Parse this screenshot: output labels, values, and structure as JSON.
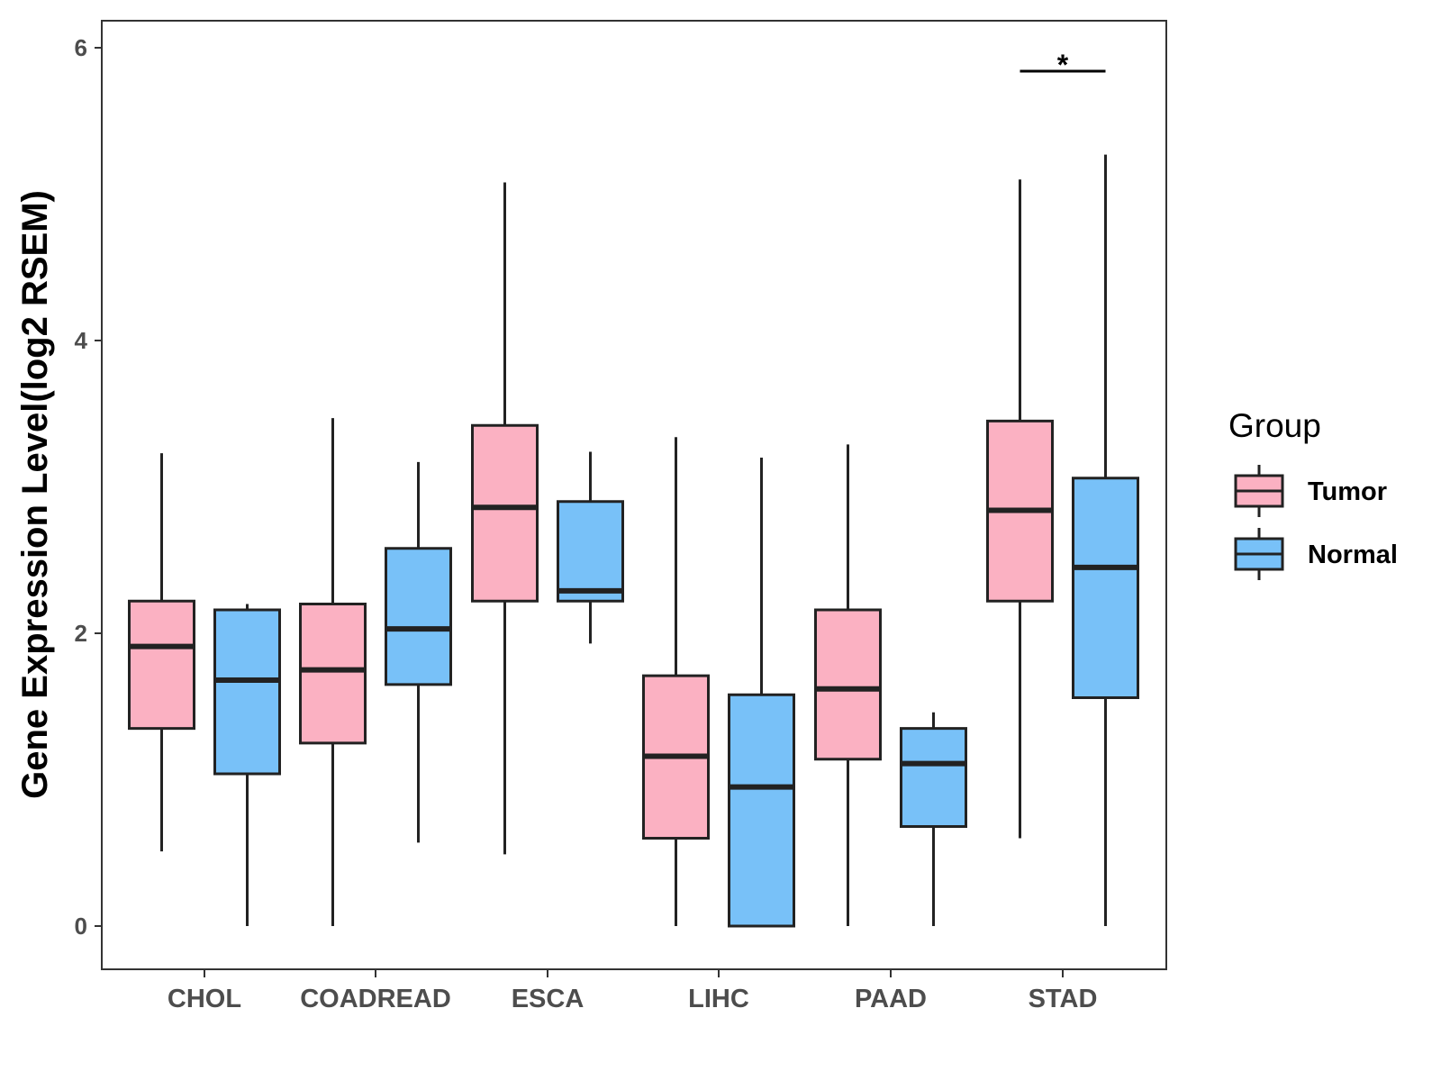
{
  "chart_data": {
    "type": "boxplot",
    "title": "",
    "xlabel": "",
    "ylabel": "Gene Expression Level(log2 RSEM)",
    "ylim": [
      -0.28,
      6.18
    ],
    "y_ticks": [
      0,
      2,
      4,
      6
    ],
    "y_tick_labels": [
      "0",
      "2",
      "4",
      "6"
    ],
    "grid": false,
    "legend": {
      "title": "Group",
      "position": "right",
      "items": [
        {
          "name": "Tumor",
          "color": "#FBB1C2"
        },
        {
          "name": "Normal",
          "color": "#78C1F8"
        }
      ]
    },
    "categories": [
      "CHOL",
      "COADREAD",
      "ESCA",
      "LIHC",
      "PAAD",
      "STAD"
    ],
    "series": [
      {
        "name": "Tumor",
        "color": "#FBB1C2",
        "boxes": [
          {
            "whisker_low": 0.51,
            "q1": 1.35,
            "median": 1.91,
            "q3": 2.22,
            "whisker_high": 3.23
          },
          {
            "whisker_low": 0.0,
            "q1": 1.25,
            "median": 1.75,
            "q3": 2.2,
            "whisker_high": 3.47
          },
          {
            "whisker_low": 0.49,
            "q1": 2.22,
            "median": 2.86,
            "q3": 3.42,
            "whisker_high": 5.08
          },
          {
            "whisker_low": 0.0,
            "q1": 0.6,
            "median": 1.16,
            "q3": 1.71,
            "whisker_high": 3.34
          },
          {
            "whisker_low": 0.0,
            "q1": 1.14,
            "median": 1.62,
            "q3": 2.16,
            "whisker_high": 3.29
          },
          {
            "whisker_low": 0.6,
            "q1": 2.22,
            "median": 2.84,
            "q3": 3.45,
            "whisker_high": 5.1
          }
        ]
      },
      {
        "name": "Normal",
        "color": "#78C1F8",
        "boxes": [
          {
            "whisker_low": 0.0,
            "q1": 1.04,
            "median": 1.68,
            "q3": 2.16,
            "whisker_high": 2.2
          },
          {
            "whisker_low": 0.57,
            "q1": 1.65,
            "median": 2.03,
            "q3": 2.58,
            "whisker_high": 3.17
          },
          {
            "whisker_low": 1.93,
            "q1": 2.22,
            "median": 2.29,
            "q3": 2.9,
            "whisker_high": 3.24
          },
          {
            "whisker_low": 0.0,
            "q1": 0.0,
            "median": 0.95,
            "q3": 1.58,
            "whisker_high": 3.2
          },
          {
            "whisker_low": 0.0,
            "q1": 0.68,
            "median": 1.11,
            "q3": 1.35,
            "whisker_high": 1.46
          },
          {
            "whisker_low": 0.0,
            "q1": 1.56,
            "median": 2.45,
            "q3": 3.06,
            "whisker_high": 5.27
          }
        ]
      }
    ],
    "annotations": [
      {
        "category": "STAD",
        "text": "*",
        "y": 5.84
      }
    ]
  }
}
